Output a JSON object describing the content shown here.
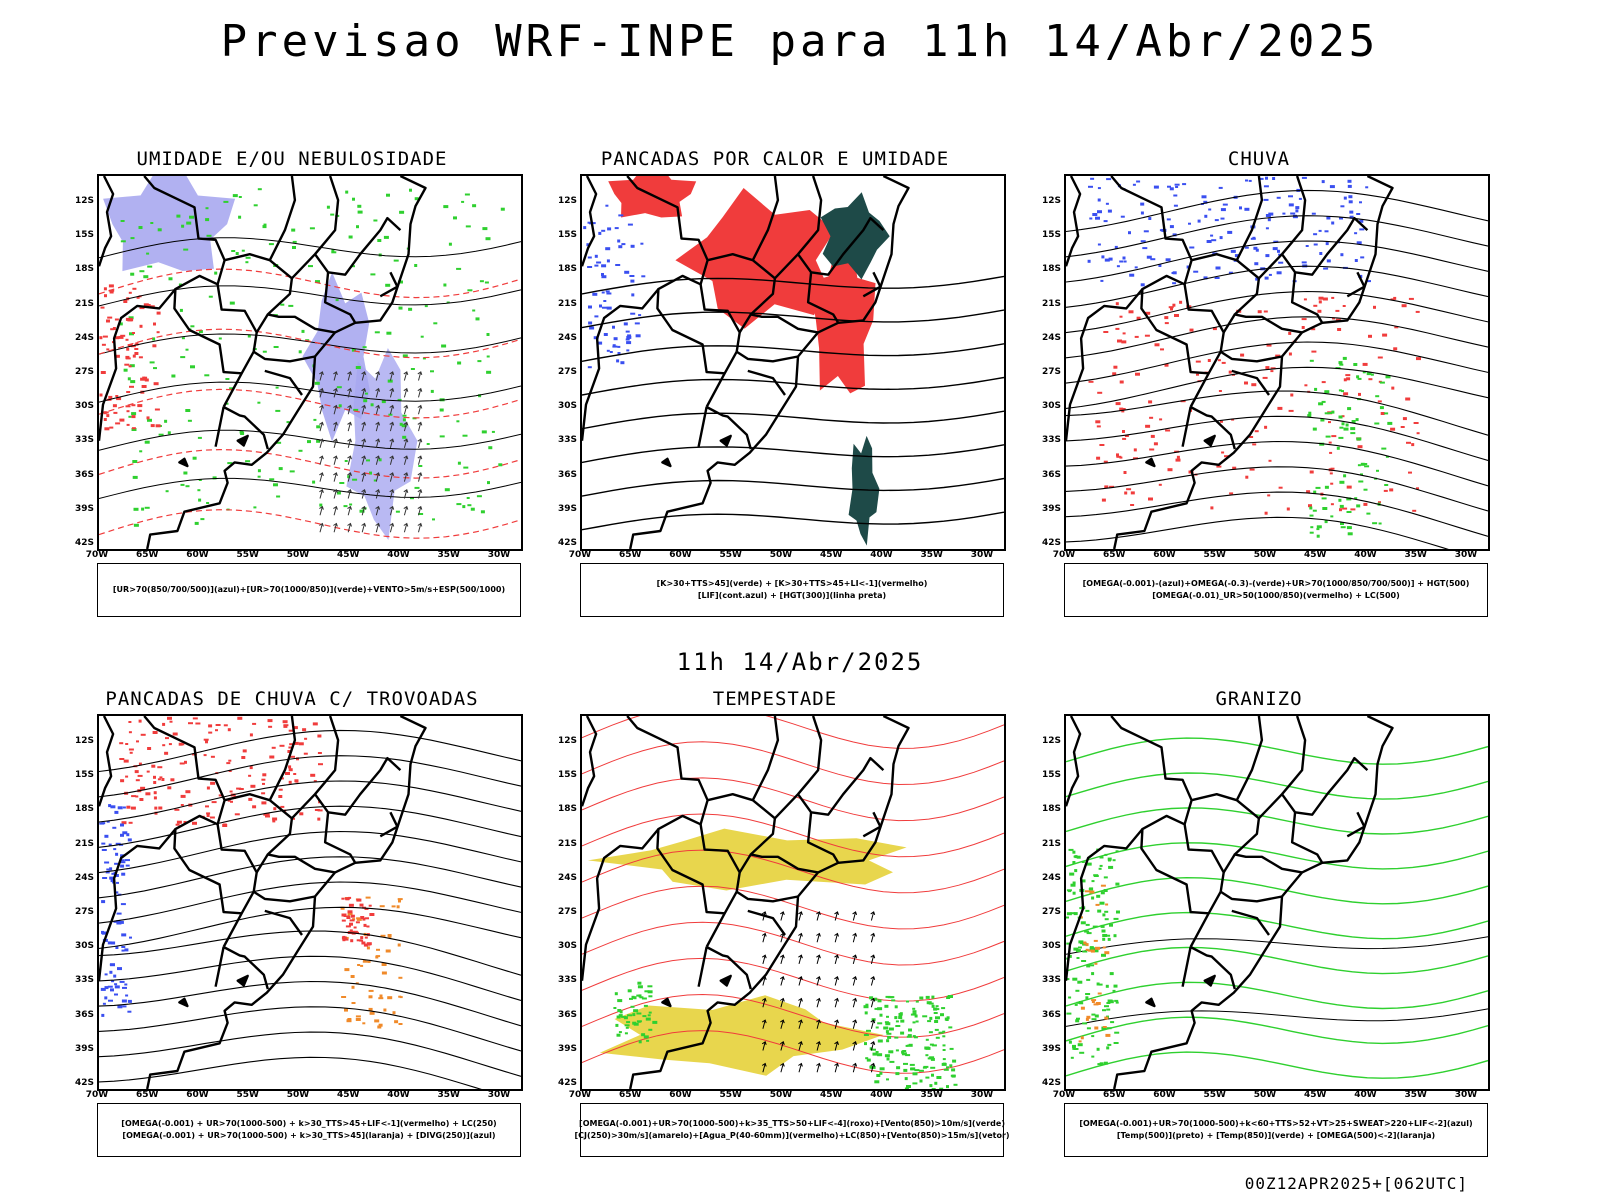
{
  "main_title": "Previsao WRF-INPE  para 11h 14/Abr/2025",
  "mid_time": "11h 14/Abr/2025",
  "footer": "00Z12APR2025+[062UTC]",
  "lat_labels": [
    "12S",
    "15S",
    "18S",
    "21S",
    "24S",
    "27S",
    "30S",
    "33S",
    "36S",
    "39S",
    "42S"
  ],
  "lon_labels": [
    "70W",
    "65W",
    "60W",
    "55W",
    "50W",
    "45W",
    "40W",
    "35W",
    "30W"
  ],
  "panels": [
    {
      "title": "UMIDADE E/OU NEBULOSIDADE",
      "legend": [
        "[UR>70(850/700/500)](azul)+[UR>70(1000/850)](verde)+VENTO>5m/s+ESP(500/1000)"
      ]
    },
    {
      "title": "PANCADAS POR CALOR E UMIDADE",
      "legend": [
        "[K>30+TTS>45](verde)  +  [K>30+TTS>45+LI<-1](vermelho)",
        "[LIF](cont.azul)  +  [HGT(300)](linha preta)"
      ]
    },
    {
      "title": "CHUVA",
      "legend": [
        "[OMEGA(-0.001)-(azul)+OMEGA(-0.3)-(verde)+UR>70(1000/850/700/500)]  +  HGT(500)",
        "[OMEGA(-0.01)_UR>50(1000/850)(vermelho)  +  LC(500)"
      ]
    },
    {
      "title": "PANCADAS DE CHUVA C/ TROVOADAS",
      "legend": [
        "[OMEGA(-0.001)  +  UR>70(1000-500)  +  k>30_TTS>45+LIF<-1](vermelho)  +  LC(250)",
        "[OMEGA(-0.001)  +  UR>70(1000-500)  +  k>30_TTS>45](laranja)  +  [DIVG(250)](azul)"
      ]
    },
    {
      "title": "TEMPESTADE",
      "legend": [
        "[OMEGA(-0.001)+UR>70(1000-500)+k>35_TTS>50+LIF<-4](roxo)+[Vento(850)>10m/s](verde)",
        "[CJ(250)>30m/s](amarelo)+[Agua_P(40-60mm)](vermelho)+LC(850)+[Vento(850)>15m/s](vetor)"
      ]
    },
    {
      "title": "GRANIZO",
      "legend": [
        "[OMEGA(-0.001)+UR>70(1000-500)+k<60+TTS>52+VT>25+SWEAT>220+LIF<-2](azul)",
        "[Temp(500)](preto)  +  [Temp(850)](verde)  +  [OMEGA(500)<-2](laranja)"
      ]
    }
  ],
  "colors": {
    "blue": "#3a4ff0",
    "lightblue": "#a8a8f0",
    "green": "#2fd02f",
    "red": "#f03c3c",
    "yellow": "#e6d23a",
    "teal": "#1e4a48",
    "orange": "#f08a2a"
  }
}
